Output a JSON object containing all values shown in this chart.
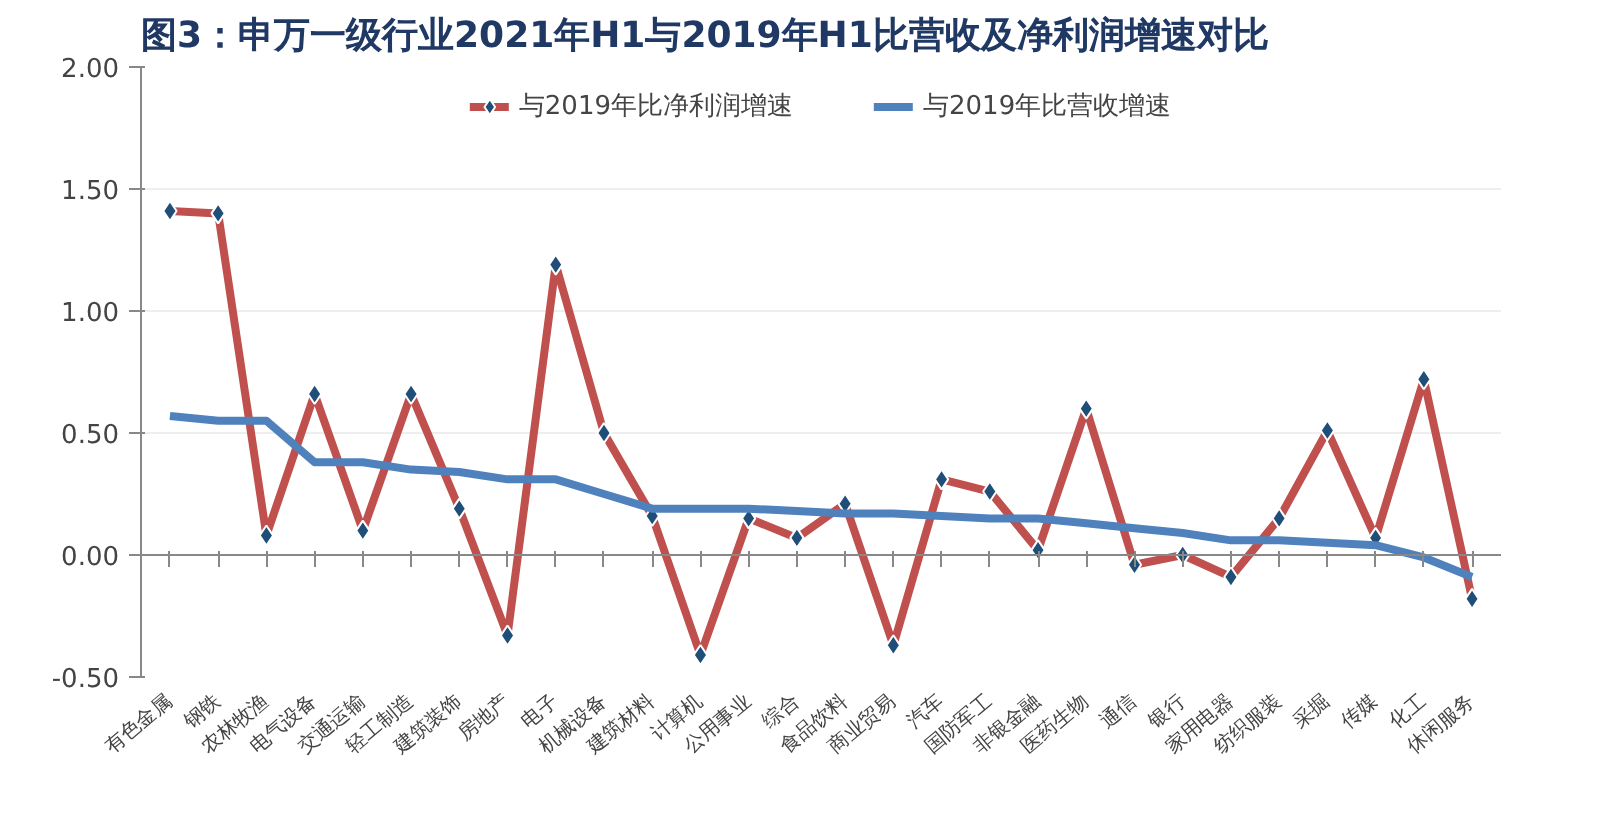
{
  "chart_data": {
    "type": "line",
    "title": "图3：申万一级行业2021年H1与2019年H1比营收及净利润增速对比",
    "categories": [
      "有色金属",
      "钢铁",
      "农林牧渔",
      "电气设备",
      "交通运输",
      "轻工制造",
      "建筑装饰",
      "房地产",
      "电子",
      "机械设备",
      "建筑材料",
      "计算机",
      "公用事业",
      "综合",
      "食品饮料",
      "商业贸易",
      "汽车",
      "国防军工",
      "非银金融",
      "医药生物",
      "通信",
      "银行",
      "家用电器",
      "纺织服装",
      "采掘",
      "传媒",
      "化工",
      "休闲服务"
    ],
    "series": [
      {
        "name": "与2019年比净利润增速",
        "color": "#c0504d",
        "marker": "diamond",
        "values": [
          1.41,
          1.4,
          0.08,
          0.66,
          0.1,
          0.66,
          0.19,
          -0.33,
          1.19,
          0.5,
          0.16,
          -0.41,
          0.15,
          0.07,
          0.21,
          -0.37,
          0.31,
          0.26,
          0.02,
          0.6,
          -0.04,
          0.0,
          -0.09,
          0.15,
          0.51,
          0.07,
          0.72,
          -0.18
        ]
      },
      {
        "name": "与2019年比营收增速",
        "color": "#4f81bd",
        "marker": "none",
        "values": [
          0.57,
          0.55,
          0.55,
          0.38,
          0.38,
          0.35,
          0.34,
          0.31,
          0.31,
          0.25,
          0.19,
          0.19,
          0.19,
          0.18,
          0.17,
          0.17,
          0.16,
          0.15,
          0.15,
          0.13,
          0.11,
          0.09,
          0.06,
          0.06,
          0.05,
          0.04,
          -0.01,
          -0.09
        ]
      }
    ],
    "ylim": [
      -0.5,
      2.0
    ],
    "yticks": [
      {
        "value": -0.5,
        "label": "-0.50"
      },
      {
        "value": 0,
        "label": "0.00"
      },
      {
        "value": 0.5,
        "label": "0.50"
      },
      {
        "value": 1.0,
        "label": "1.00"
      },
      {
        "value": 1.5,
        "label": "1.50"
      },
      {
        "value": 2.0,
        "label": "2.00"
      }
    ],
    "grid": "y",
    "legend": "top"
  }
}
